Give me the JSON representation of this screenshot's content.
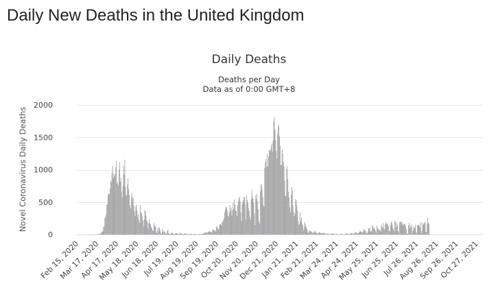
{
  "page": {
    "title": "Daily New Deaths in the United Kingdom"
  },
  "chart_data": {
    "type": "bar",
    "title": "Daily Deaths",
    "subtitle": "Deaths per Day",
    "subtitle2": "Data as of 0:00 GMT+8",
    "ylabel": "Novel Coronavirus Daily Deaths",
    "xlabel": "",
    "ylim": [
      0,
      2000
    ],
    "yticks": [
      0,
      500,
      1000,
      1500,
      2000
    ],
    "grid": true,
    "legend": "none",
    "bar_color": "#a0a0a0",
    "start_date": "2020-02-15",
    "end_date": "2021-11-05",
    "x_tick_labels": [
      "Feb 15, 2020",
      "Mar 17, 2020",
      "Apr 17, 2020",
      "May 18, 2020",
      "Jun 18, 2020",
      "Jul 19, 2020",
      "Aug 19, 2020",
      "Sep 19, 2020",
      "Oct 20, 2020",
      "Nov 20, 2020",
      "Dec 21, 2020",
      "Jan 21, 2021",
      "Feb 21, 2021",
      "Mar 24, 2021",
      "Apr 24, 2021",
      "May 25, 2021",
      "Jun 25, 2021",
      "Jul 26, 2021",
      "Aug 26, 2021",
      "Sep 26, 2021",
      "Oct 27, 2021"
    ],
    "x_tick_dates": [
      "2020-02-15",
      "2020-03-17",
      "2020-04-17",
      "2020-05-18",
      "2020-06-18",
      "2020-07-19",
      "2020-08-19",
      "2020-09-19",
      "2020-10-20",
      "2020-11-20",
      "2020-12-21",
      "2021-01-21",
      "2021-02-21",
      "2021-03-24",
      "2021-04-24",
      "2021-05-25",
      "2021-06-25",
      "2021-07-26",
      "2021-08-26",
      "2021-09-26",
      "2021-10-27"
    ],
    "series": [
      {
        "values": [
          0,
          0,
          0,
          0,
          0,
          0,
          0,
          0,
          0,
          0,
          0,
          0,
          0,
          0,
          0,
          0,
          0,
          0,
          0,
          0,
          0,
          0,
          0,
          0,
          0,
          1,
          0,
          2,
          1,
          2,
          2,
          4,
          6,
          3,
          4,
          11,
          19,
          17,
          33,
          42,
          54,
          113,
          124,
          251,
          268,
          304,
          457,
          472,
          614,
          630,
          625,
          709,
          830,
          808,
          954,
          1058,
          868,
          940,
          895,
          933,
          1044,
          1137,
          786,
          811,
          758,
          1000,
          1118,
          817,
          872,
          662,
          569,
          745,
          1060,
          927,
          1155,
          733,
          598,
          614,
          769,
          869,
          707,
          617,
          451,
          405,
          571,
          643,
          546,
          570,
          445,
          360,
          282,
          425,
          464,
          372,
          267,
          316,
          222,
          182,
          456,
          342,
          333,
          282,
          216,
          123,
          232,
          360,
          380,
          289,
          221,
          191,
          91,
          175,
          233,
          173,
          158,
          119,
          98,
          63,
          53,
          178,
          130,
          134,
          115,
          35,
          22,
          104,
          53,
          113,
          99,
          69,
          18,
          15,
          48,
          87,
          30,
          52,
          47,
          10,
          17,
          15,
          58,
          73,
          15,
          18,
          5,
          11,
          22,
          28,
          20,
          19,
          5,
          5,
          15,
          21,
          18,
          17,
          17,
          8,
          7,
          11,
          28,
          13,
          18,
          9,
          5,
          4,
          14,
          18,
          8,
          13,
          7,
          8,
          5,
          4,
          5,
          5,
          13,
          8,
          11,
          4,
          3,
          3,
          11,
          10,
          8,
          3,
          2,
          3,
          3,
          7,
          5,
          6,
          8,
          7,
          4,
          19,
          20,
          9,
          30,
          34,
          35,
          23,
          31,
          36,
          47,
          49,
          41,
          44,
          28,
          37,
          74,
          73,
          70,
          59,
          65,
          44,
          123,
          128,
          99,
          80,
          84,
          153,
          162,
          156,
          138,
          188,
          205,
          218,
          255,
          345,
          387,
          428,
          415,
          365,
          288,
          275,
          339,
          455,
          371,
          413,
          292,
          368,
          488,
          397,
          546,
          465,
          368,
          359,
          289,
          452,
          517,
          556,
          584,
          510,
          341,
          205,
          468,
          506,
          528,
          581,
          578,
          458,
          231,
          609,
          529,
          486,
          407,
          358,
          275,
          225,
          544,
          691,
          587,
          555,
          487,
          325,
          148,
          607,
          551,
          623,
          514,
          389,
          202,
          169,
          666,
          758,
          783,
          696,
          580,
          452,
          425,
          1028,
          1122,
          1164,
          1044,
          1248,
          1053,
          1204,
          1306,
          1290,
          1308,
          1362,
          1406,
          1271,
          1450,
          1744,
          1816,
          1617,
          1459,
          1289,
          1175,
          1545,
          1665,
          1699,
          1514,
          1366,
          1068,
          1073,
          1316,
          1247,
          1120,
          1048,
          830,
          594,
          599,
          1009,
          1055,
          855,
          660,
          570,
          421,
          344,
          614,
          733,
          675,
          447,
          343,
          282,
          322,
          547,
          527,
          445,
          366,
          205,
          147,
          165,
          340,
          213,
          265,
          175,
          145,
          58,
          105,
          191,
          162,
          121,
          97,
          71,
          24,
          30,
          65,
          54,
          44,
          52,
          40,
          29,
          18,
          36,
          42,
          61,
          30,
          32,
          7,
          26,
          17,
          30,
          34,
          38,
          22,
          11,
          19,
          27,
          22,
          22,
          20,
          6,
          6,
          4,
          20,
          10,
          7,
          11,
          5,
          5,
          5,
          20,
          13,
          10,
          12,
          4,
          4,
          8,
          13,
          9,
          6,
          3,
          2,
          2,
          5,
          7,
          12,
          11,
          5,
          1,
          3,
          2,
          8,
          18,
          17,
          10,
          6,
          4,
          5,
          16,
          8,
          24,
          23,
          10,
          16,
          7,
          17,
          30,
          25,
          41,
          21,
          10,
          23,
          29,
          40,
          56,
          49,
          45,
          30,
          34,
          48,
          88,
          65,
          63,
          42,
          12,
          24,
          45,
          88,
          100,
          101,
          48,
          39,
          62,
          142,
          131,
          93,
          103,
          83,
          59,
          29,
          138,
          102,
          93,
          67,
          71,
          71,
          39,
          152,
          116,
          108,
          174,
          96,
          74,
          156,
          187,
          175,
          168,
          144,
          126,
          49,
          54,
          137,
          187,
          204,
          147,
          102,
          74,
          54,
          207,
          200,
          116,
          179,
          147,
          52,
          29,
          180,
          201,
          191,
          199,
          153,
          181,
          138,
          160,
          170,
          158,
          127,
          82,
          14,
          14,
          140,
          183,
          104,
          143,
          107,
          157,
          19,
          55,
          121,
          94,
          111,
          149,
          39,
          17,
          140,
          142,
          153,
          131,
          115,
          193,
          19,
          56,
          181,
          147,
          165,
          182,
          200,
          40,
          38,
          166,
          262,
          178,
          166
        ]
      }
    ]
  }
}
